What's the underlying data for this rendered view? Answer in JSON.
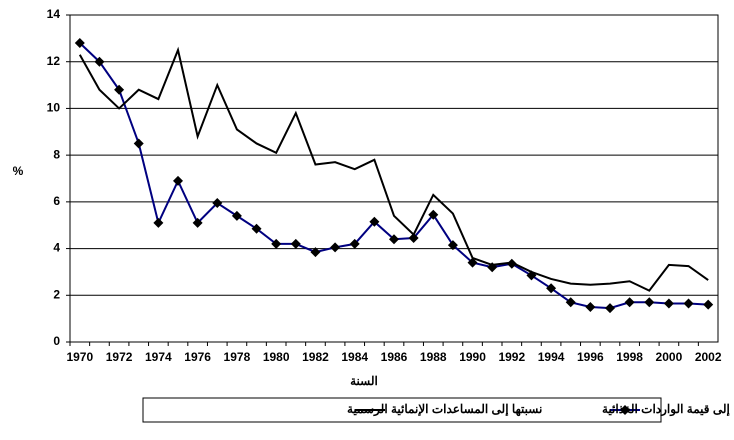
{
  "chart_data": {
    "type": "line",
    "x_label": "السنة",
    "y_label": "%",
    "categories": [
      "1970",
      null,
      "1972",
      null,
      "1974",
      null,
      "1976",
      null,
      "1978",
      null,
      "1980",
      null,
      "1982",
      null,
      "1984",
      null,
      "1986",
      null,
      "1988",
      null,
      "1990",
      null,
      "1992",
      null,
      "1994",
      null,
      "1996",
      null,
      "1998",
      null,
      "2000",
      null,
      "2002"
    ],
    "series": [
      {
        "name": "نسبتها إلى قيمة الواردات الغذائية",
        "color": "#000080",
        "marker": "diamond",
        "values": [
          12.8,
          12.0,
          10.8,
          8.5,
          5.1,
          6.9,
          5.1,
          5.95,
          5.4,
          4.85,
          4.2,
          4.2,
          3.85,
          4.05,
          4.2,
          5.15,
          4.4,
          4.45,
          5.45,
          4.15,
          3.4,
          3.2,
          3.35,
          2.85,
          2.3,
          1.7,
          1.5,
          1.45,
          1.7,
          1.7,
          1.65,
          1.65,
          1.6
        ]
      },
      {
        "name": "نسبتها إلى المساعدات الإنمائية الرسمية",
        "color": "#000000",
        "values": [
          12.3,
          10.8,
          10.0,
          10.8,
          10.4,
          12.5,
          8.8,
          11.0,
          9.1,
          8.5,
          8.1,
          9.8,
          7.6,
          7.7,
          7.4,
          7.8,
          5.4,
          4.6,
          6.3,
          5.5,
          3.6,
          3.3,
          3.4,
          3.0,
          2.7,
          2.5,
          2.45,
          2.5,
          2.6,
          2.2,
          3.3,
          3.25,
          2.65
        ]
      }
    ],
    "ylim": [
      0,
      14
    ],
    "yticks": [
      0,
      2,
      4,
      6,
      8,
      10,
      12,
      14
    ],
    "grid": true
  }
}
